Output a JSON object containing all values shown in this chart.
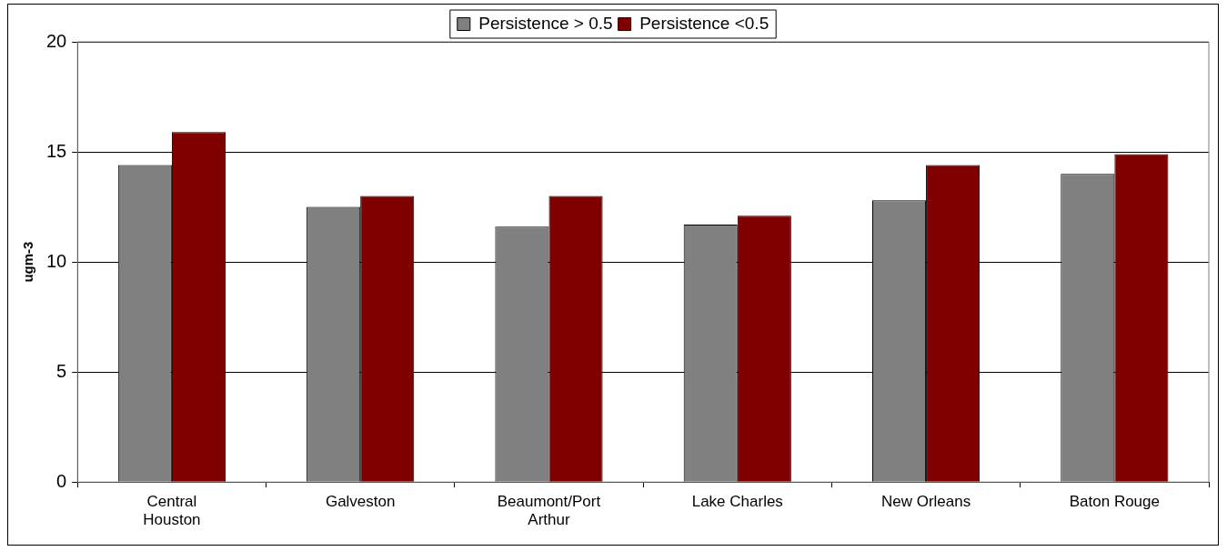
{
  "chart_data": {
    "type": "bar",
    "ylabel": "ugm-3",
    "categories": [
      "Central Houston",
      "Galveston",
      "Beaumont/Port Arthur",
      "Lake Charles",
      "New Orleans",
      "Baton Rouge"
    ],
    "series": [
      {
        "name": "Persistence > 0.5",
        "color": "#808080",
        "values": [
          14.4,
          12.5,
          11.6,
          11.7,
          12.8,
          14.0
        ]
      },
      {
        "name": "Persistence <0.5",
        "color": "#800000",
        "values": [
          15.9,
          13.0,
          13.0,
          12.1,
          14.4,
          14.9
        ]
      }
    ],
    "ylim": [
      0,
      20
    ],
    "yticks": [
      0,
      5,
      10,
      15,
      20
    ],
    "grid": "y",
    "legend": "top"
  }
}
